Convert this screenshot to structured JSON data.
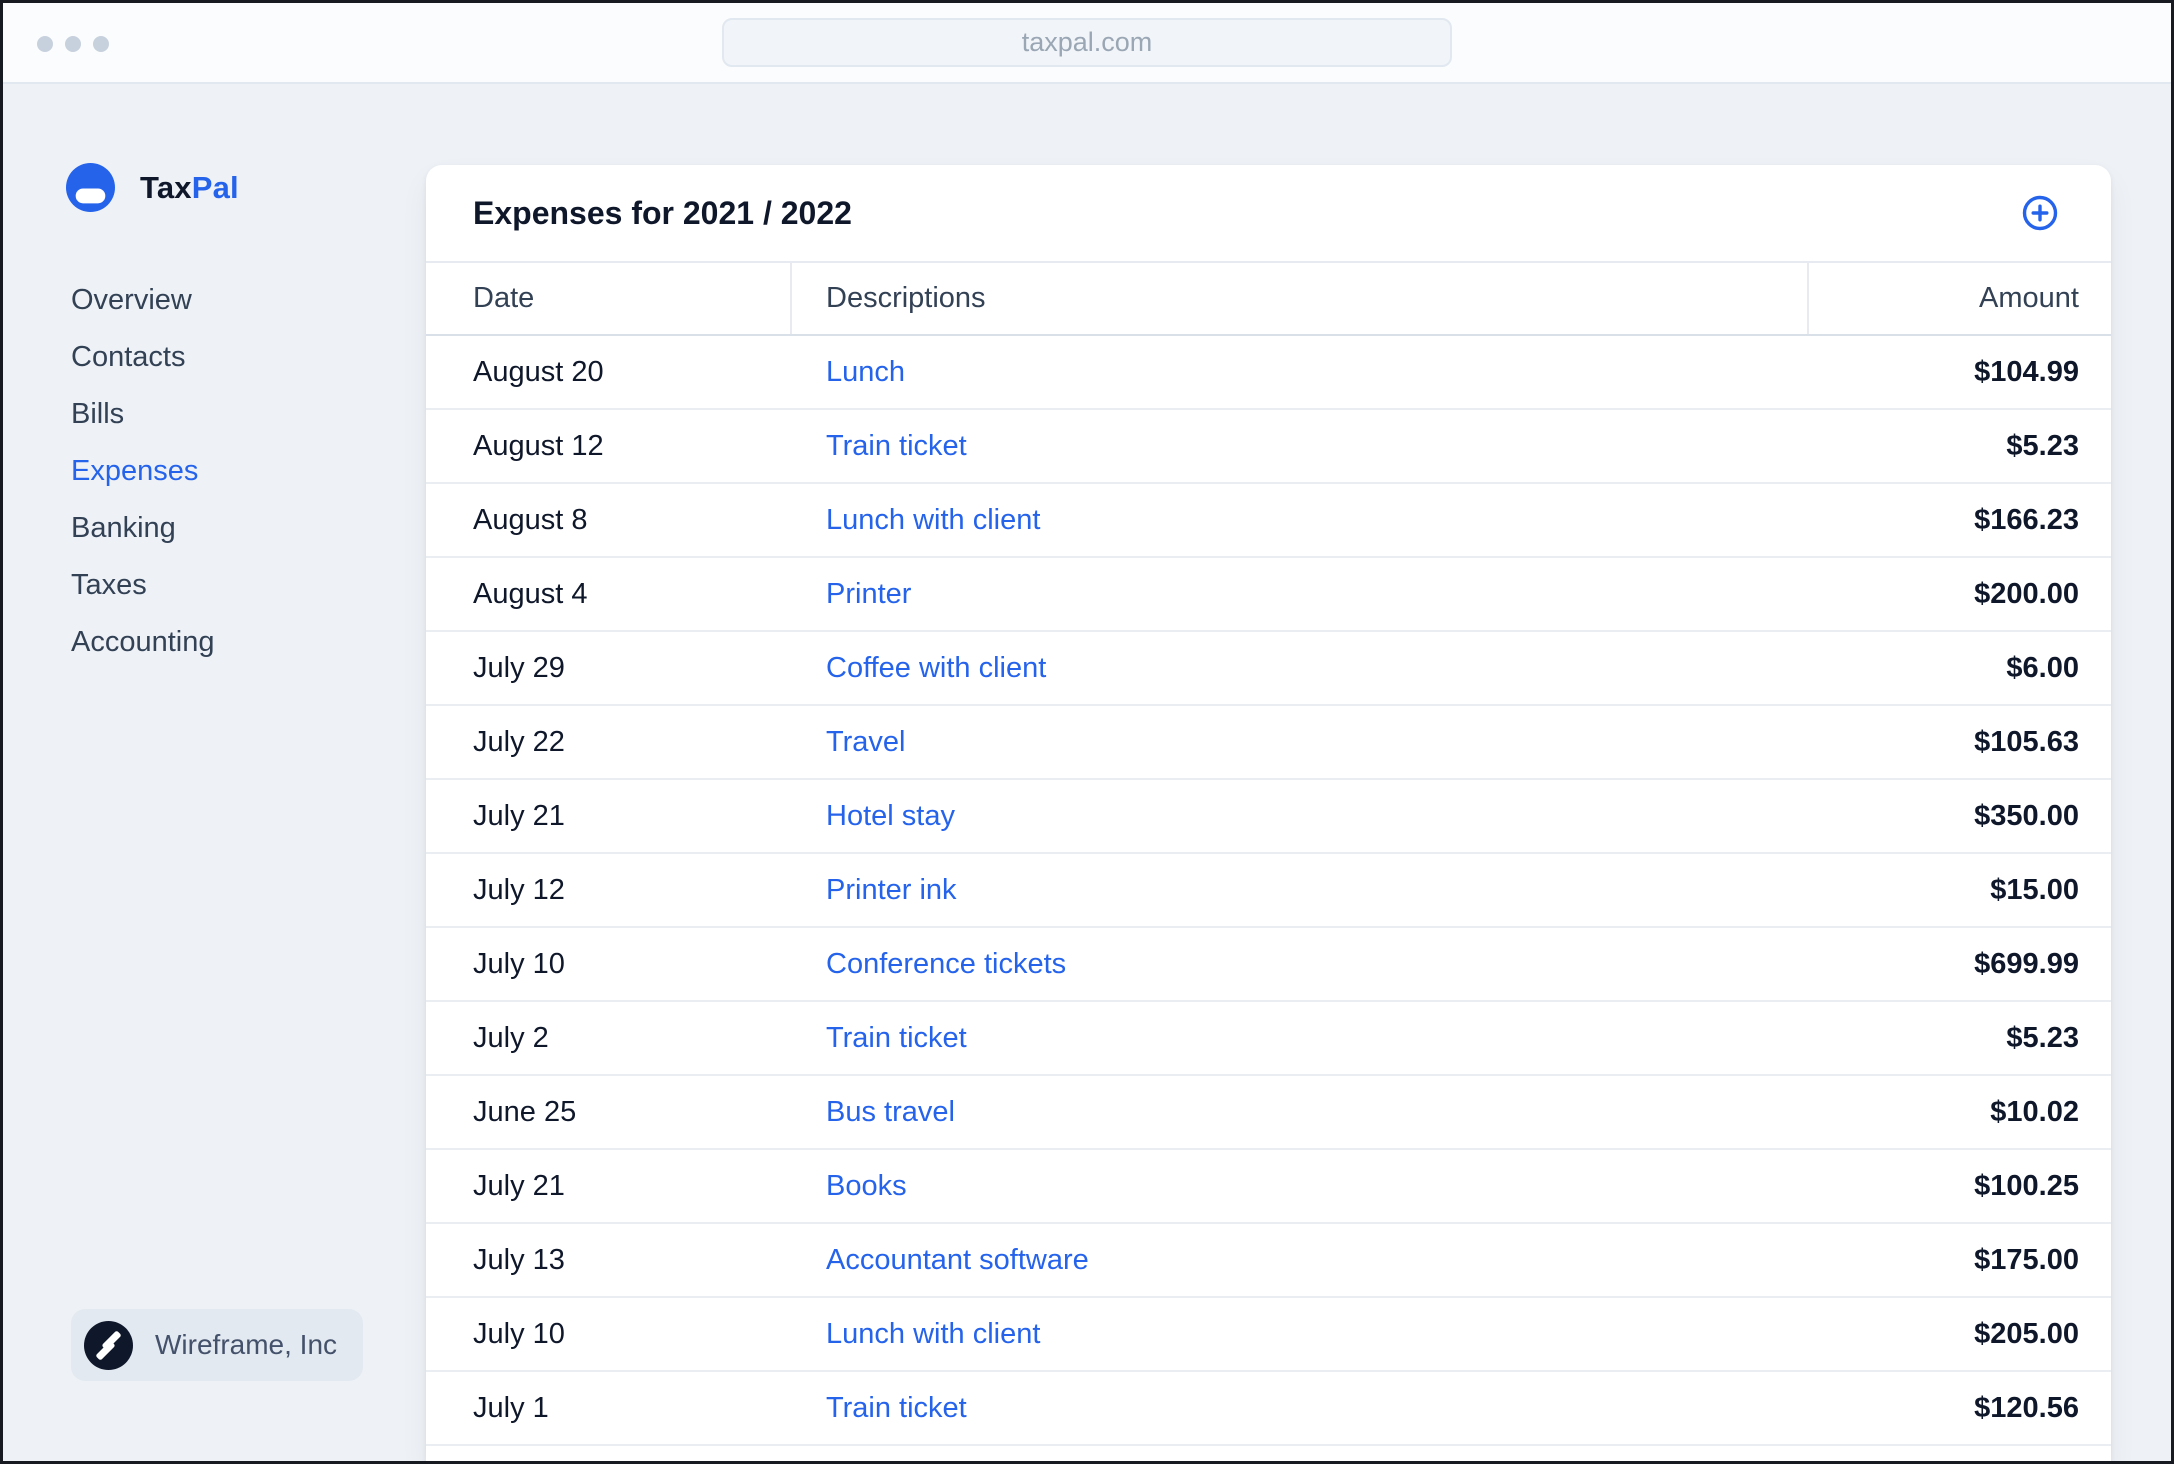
{
  "browser": {
    "url": "taxpal.com"
  },
  "sidebar": {
    "brand": {
      "first": "Tax",
      "second": "Pal"
    },
    "items": [
      {
        "label": "Overview",
        "active": false
      },
      {
        "label": "Contacts",
        "active": false
      },
      {
        "label": "Bills",
        "active": false
      },
      {
        "label": "Expenses",
        "active": true
      },
      {
        "label": "Banking",
        "active": false
      },
      {
        "label": "Taxes",
        "active": false
      },
      {
        "label": "Accounting",
        "active": false
      }
    ],
    "org_name": "Wireframe, Inc"
  },
  "main": {
    "title": "Expenses for 2021 / 2022",
    "add_button": "add-expense",
    "table": {
      "columns": [
        "Date",
        "Descriptions",
        "Amount"
      ],
      "rows": [
        {
          "date": "August 20",
          "description": "Lunch",
          "amount": "$104.99"
        },
        {
          "date": "August 12",
          "description": "Train ticket",
          "amount": "$5.23"
        },
        {
          "date": "August 8",
          "description": "Lunch with client",
          "amount": "$166.23"
        },
        {
          "date": "August 4",
          "description": "Printer",
          "amount": "$200.00"
        },
        {
          "date": "July 29",
          "description": "Coffee with client",
          "amount": "$6.00"
        },
        {
          "date": "July 22",
          "description": "Travel",
          "amount": "$105.63"
        },
        {
          "date": "July 21",
          "description": "Hotel stay",
          "amount": "$350.00"
        },
        {
          "date": "July 12",
          "description": "Printer ink",
          "amount": "$15.00"
        },
        {
          "date": "July 10",
          "description": "Conference tickets",
          "amount": "$699.99"
        },
        {
          "date": "July 2",
          "description": "Train ticket",
          "amount": "$5.23"
        },
        {
          "date": "June 25",
          "description": "Bus travel",
          "amount": "$10.02"
        },
        {
          "date": "July 21",
          "description": "Books",
          "amount": "$100.25"
        },
        {
          "date": "July 13",
          "description": "Accountant software",
          "amount": "$175.00"
        },
        {
          "date": "July 10",
          "description": "Lunch with client",
          "amount": "$205.00"
        },
        {
          "date": "July 1",
          "description": "Train ticket",
          "amount": "$120.56"
        }
      ]
    }
  },
  "colors": {
    "accent": "#2563eb",
    "text_dark": "#0f172a",
    "text_muted": "#334155",
    "page_bg": "#eef2f7",
    "org_logo_bg": "#0f172a"
  }
}
